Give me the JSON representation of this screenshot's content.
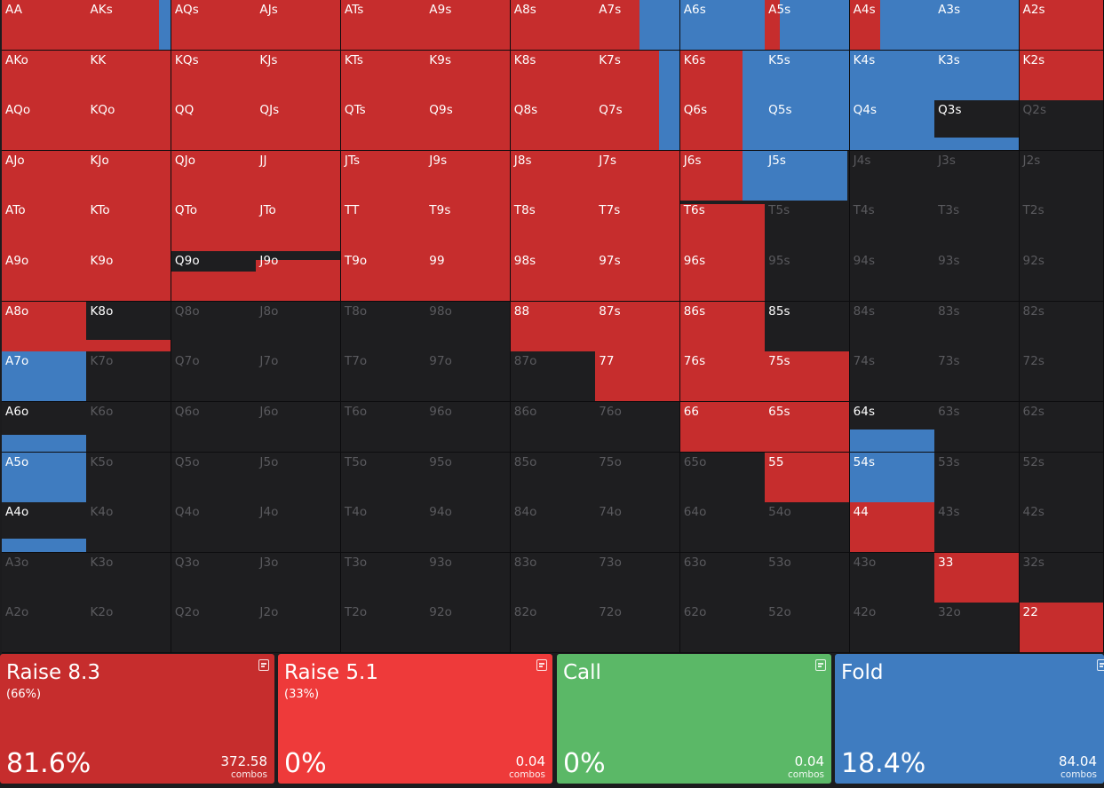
{
  "colors": {
    "raise_big": "#c62d2d",
    "raise_small": "#ee3a3a",
    "call": "#5bb867",
    "fold": "#3f7cc0",
    "empty": "#1e1e20"
  },
  "matrix": {
    "rows": [
      [
        "AA",
        "AKs",
        "AQs",
        "AJs",
        "ATs",
        "A9s",
        "A8s",
        "A7s",
        "A6s",
        "A5s",
        "A4s",
        "A3s",
        "A2s"
      ],
      [
        "AKo",
        "KK",
        "KQs",
        "KJs",
        "KTs",
        "K9s",
        "K8s",
        "K7s",
        "K6s",
        "K5s",
        "K4s",
        "K3s",
        "K2s"
      ],
      [
        "AQo",
        "KQo",
        "QQ",
        "QJs",
        "QTs",
        "Q9s",
        "Q8s",
        "Q7s",
        "Q6s",
        "Q5s",
        "Q4s",
        "Q3s",
        "Q2s"
      ],
      [
        "AJo",
        "KJo",
        "QJo",
        "JJ",
        "JTs",
        "J9s",
        "J8s",
        "J7s",
        "J6s",
        "J5s",
        "J4s",
        "J3s",
        "J2s"
      ],
      [
        "ATo",
        "KTo",
        "QTo",
        "JTo",
        "TT",
        "T9s",
        "T8s",
        "T7s",
        "T6s",
        "T5s",
        "T4s",
        "T3s",
        "T2s"
      ],
      [
        "A9o",
        "K9o",
        "Q9o",
        "J9o",
        "T9o",
        "99",
        "98s",
        "97s",
        "96s",
        "95s",
        "94s",
        "93s",
        "92s"
      ],
      [
        "A8o",
        "K8o",
        "Q8o",
        "J8o",
        "T8o",
        "98o",
        "88",
        "87s",
        "86s",
        "85s",
        "84s",
        "83s",
        "82s"
      ],
      [
        "A7o",
        "K7o",
        "Q7o",
        "J7o",
        "T7o",
        "97o",
        "87o",
        "77",
        "76s",
        "75s",
        "74s",
        "73s",
        "72s"
      ],
      [
        "A6o",
        "K6o",
        "Q6o",
        "J6o",
        "T6o",
        "96o",
        "86o",
        "76o",
        "66",
        "65s",
        "64s",
        "63s",
        "62s"
      ],
      [
        "A5o",
        "K5o",
        "Q5o",
        "J5o",
        "T5o",
        "95o",
        "85o",
        "75o",
        "65o",
        "55",
        "54s",
        "53s",
        "52s"
      ],
      [
        "A4o",
        "K4o",
        "Q4o",
        "J4o",
        "T4o",
        "94o",
        "84o",
        "74o",
        "64o",
        "54o",
        "44",
        "43s",
        "42s"
      ],
      [
        "A3o",
        "K3o",
        "Q3o",
        "J3o",
        "T3o",
        "93o",
        "83o",
        "73o",
        "63o",
        "53o",
        "43o",
        "33",
        "32s"
      ],
      [
        "A2o",
        "K2o",
        "Q2o",
        "J2o",
        "T2o",
        "92o",
        "82o",
        "72o",
        "62o",
        "52o",
        "42o",
        "32o",
        "22"
      ]
    ],
    "mixes": {
      "AKs": {
        "raise": 0.86,
        "fold": 0.14
      },
      "A7s": {
        "raise": 0.52,
        "fold": 0.48
      },
      "A6s": {
        "fold": 1
      },
      "A5s": {
        "raise": 0.18,
        "fold": 0.82
      },
      "A4s": {
        "raise": 0.36,
        "fold": 0.64
      },
      "A3s": {
        "fold": 1
      },
      "K7s": {
        "raise": 0.76,
        "fold": 0.24
      },
      "K6s": {
        "raise": 0.74,
        "fold": 0.26
      },
      "K5s": {
        "fold": 1
      },
      "K4s": {
        "fold": 1
      },
      "K3s": {
        "fold": 1
      },
      "Q7s": {
        "raise": 0.76,
        "fold": 0.24
      },
      "Q6s": {
        "raise": 0.74,
        "fold": 0.26
      },
      "Q5s": {
        "fold": 1
      },
      "Q4s": {
        "fold": 1
      },
      "Q3s": {
        "fold_bottom": 0.26
      },
      "J6s": {
        "raise": 0.74,
        "fold": 0.26
      },
      "J5s": {
        "fold": 0.98,
        "fold_bottom_only": true
      },
      "T6s": {
        "raise_bottom": 0.94
      },
      "Q9o": {
        "raise_bottom": 0.6
      },
      "J9o": {
        "raise_bottom": 0.82
      },
      "K8o": {
        "raise_bottom": 0.22
      },
      "85s": {
        "raise_bottom": 0
      },
      "A7o": {
        "fold": 1
      },
      "A6o": {
        "fold_bottom": 0.34
      },
      "A5o": {
        "fold": 1
      },
      "A4o": {
        "fold_bottom": 0.28
      },
      "64s": {
        "fold_bottom": 0.45
      },
      "54s": {
        "fold": 1
      }
    },
    "raise_full": [
      "AA",
      "AQs",
      "AJs",
      "ATs",
      "A9s",
      "A8s",
      "A2s",
      "AKo",
      "KK",
      "KQs",
      "KJs",
      "KTs",
      "K9s",
      "K8s",
      "K2s",
      "AQo",
      "KQo",
      "QQ",
      "QJs",
      "QTs",
      "Q9s",
      "Q8s",
      "AJo",
      "KJo",
      "QJo",
      "JJ",
      "JTs",
      "J9s",
      "J8s",
      "J7s",
      "ATo",
      "KTo",
      "QTo",
      "JTo",
      "TT",
      "T9s",
      "T8s",
      "T7s",
      "A9o",
      "K9o",
      "T9o",
      "99",
      "98s",
      "97s",
      "96s",
      "A8o",
      "88",
      "87s",
      "86s",
      "77",
      "76s",
      "75s",
      "66",
      "65s",
      "55",
      "44",
      "33",
      "22"
    ],
    "visible_empty": [
      "Q3s",
      "85s",
      "A6o",
      "A4o",
      "64s",
      "K8o",
      "Q9o",
      "J9o",
      "T6s"
    ]
  },
  "actions": [
    {
      "title": "Raise 8.3",
      "sub": "(66%)",
      "pct": "81.6%",
      "combos": "372.58",
      "combos_label": "combos",
      "color_key": "raise_big",
      "icon": "notes-icon"
    },
    {
      "title": "Raise 5.1",
      "sub": "(33%)",
      "pct": "0%",
      "combos": "0.04",
      "combos_label": "combos",
      "color_key": "raise_small",
      "icon": "notes-icon"
    },
    {
      "title": "Call",
      "sub": "",
      "pct": "0%",
      "combos": "0.04",
      "combos_label": "combos",
      "color_key": "call",
      "icon": "notes-icon"
    },
    {
      "title": "Fold",
      "sub": "",
      "pct": "18.4%",
      "combos": "84.04",
      "combos_label": "combos",
      "color_key": "fold",
      "icon": "notes-icon"
    }
  ]
}
